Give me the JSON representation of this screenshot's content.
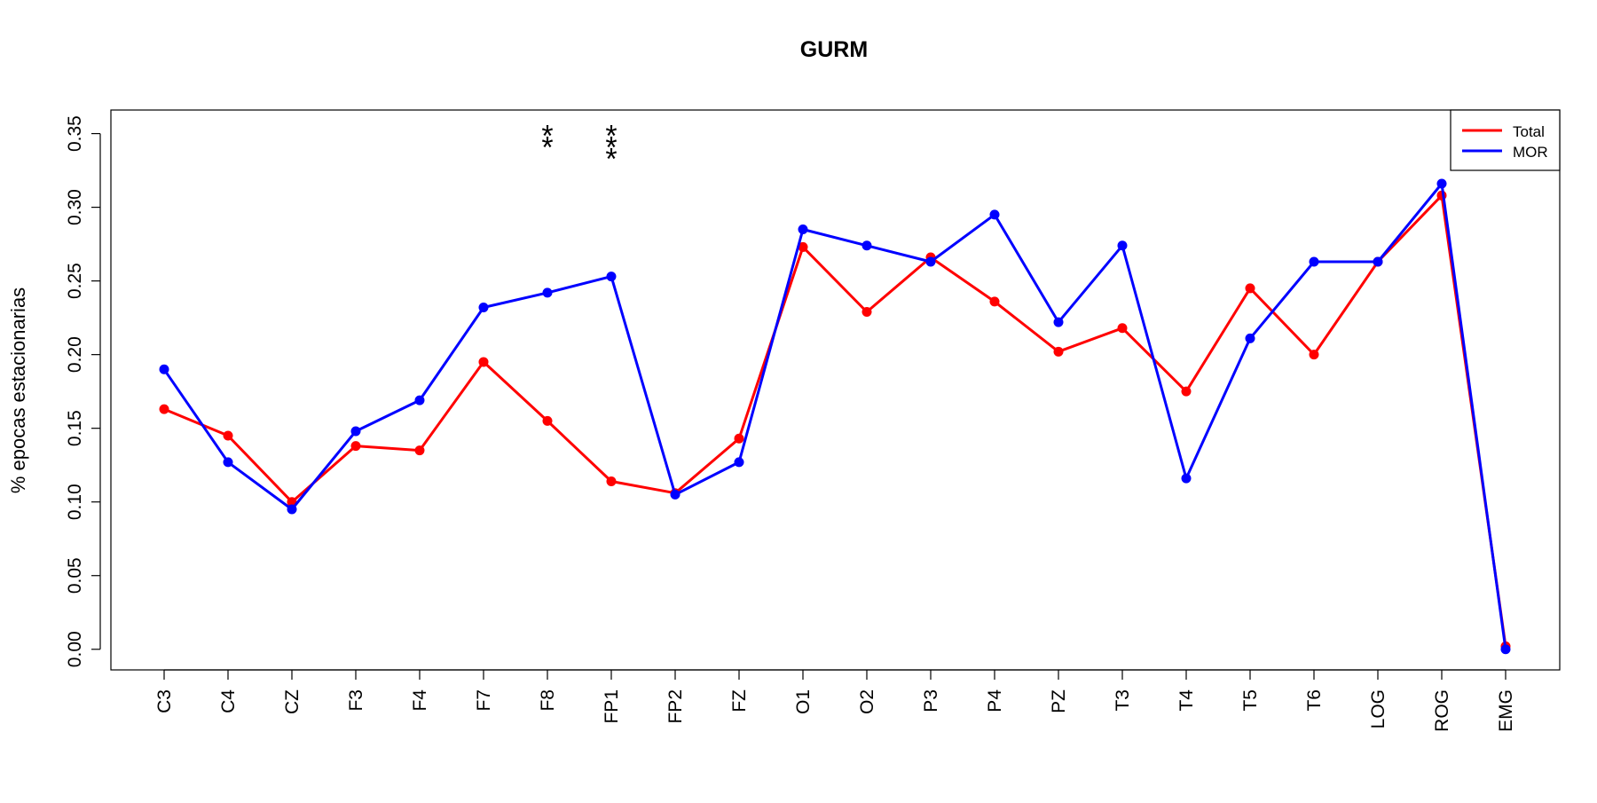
{
  "chart_data": {
    "type": "line",
    "title": "GURM",
    "xlabel": "",
    "ylabel": "% epocas estacionarias",
    "ylim": [
      -0.014,
      0.366
    ],
    "yticks": [
      "0.00",
      "0.05",
      "0.10",
      "0.15",
      "0.20",
      "0.25",
      "0.30",
      "0.35"
    ],
    "categories": [
      "C3",
      "C4",
      "CZ",
      "F3",
      "F4",
      "F7",
      "F8",
      "FP1",
      "FP2",
      "FZ",
      "O1",
      "O2",
      "P3",
      "P4",
      "PZ",
      "T3",
      "T4",
      "T5",
      "T6",
      "LOG",
      "ROG",
      "EMG"
    ],
    "series": [
      {
        "name": "Total",
        "color": "#ff0000",
        "values": [
          0.163,
          0.145,
          0.1,
          0.138,
          0.135,
          0.195,
          0.155,
          0.114,
          0.106,
          0.143,
          0.273,
          0.229,
          0.266,
          0.236,
          0.202,
          0.218,
          0.175,
          0.245,
          0.2,
          0.263,
          0.308,
          0.002
        ]
      },
      {
        "name": "MOR",
        "color": "#0000ff",
        "values": [
          0.19,
          0.127,
          0.095,
          0.148,
          0.169,
          0.232,
          0.242,
          0.253,
          0.105,
          0.127,
          0.285,
          0.274,
          0.263,
          0.295,
          0.222,
          0.274,
          0.116,
          0.211,
          0.263,
          0.263,
          0.316,
          0.0
        ]
      }
    ],
    "annotations": [
      {
        "category": "F8",
        "text": "**"
      },
      {
        "category": "FP1",
        "text": "***"
      }
    ],
    "legend": {
      "position": "top-right",
      "entries": [
        "Total",
        "MOR"
      ]
    },
    "grid": false
  }
}
